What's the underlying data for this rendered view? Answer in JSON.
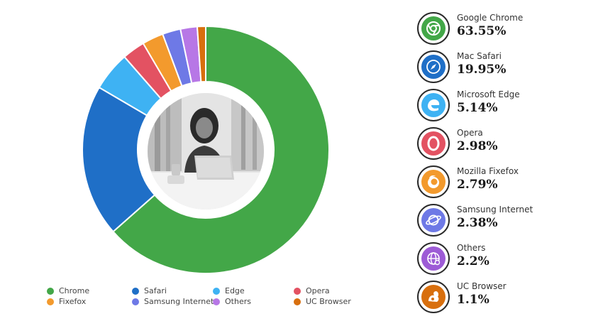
{
  "chart_data": {
    "type": "pie",
    "style": "donut",
    "categories": [
      "Chrome",
      "Safari",
      "Edge",
      "Opera",
      "Fixefox",
      "Samsung Internet",
      "Others",
      "UC Browser"
    ],
    "values": [
      63.55,
      19.95,
      5.14,
      2.98,
      2.79,
      2.38,
      2.2,
      1.1
    ],
    "colors": [
      "#43a748",
      "#1f6fc7",
      "#3eb2f3",
      "#e35262",
      "#f39a2d",
      "#6e79e6",
      "#b777e6",
      "#d86f0e"
    ],
    "legend_position": "bottom-left"
  },
  "legend": [
    {
      "label": "Chrome",
      "color": "#43a748"
    },
    {
      "label": "Safari",
      "color": "#1f6fc7"
    },
    {
      "label": "Edge",
      "color": "#3eb2f3"
    },
    {
      "label": "Opera",
      "color": "#e35262"
    },
    {
      "label": "Fixefox",
      "color": "#f39a2d"
    },
    {
      "label": "Samsung Internet",
      "color": "#6e79e6"
    },
    {
      "label": "Others",
      "color": "#b777e6"
    },
    {
      "label": "UC Browser",
      "color": "#d86f0e"
    }
  ],
  "stats": [
    {
      "name": "Google Chrome",
      "value": "63.55%",
      "icon": "chrome-icon",
      "color": "#43a748"
    },
    {
      "name": "Mac Safari",
      "value": "19.95%",
      "icon": "safari-icon",
      "color": "#1f6fc7"
    },
    {
      "name": "Microsoft Edge",
      "value": "5.14%",
      "icon": "edge-icon",
      "color": "#3eb2f3"
    },
    {
      "name": "Opera",
      "value": "2.98%",
      "icon": "opera-icon",
      "color": "#e35262"
    },
    {
      "name": "Mozilla Fixefox",
      "value": "2.79%",
      "icon": "firefox-icon",
      "color": "#f39a2d"
    },
    {
      "name": "Samsung Internet",
      "value": "2.38%",
      "icon": "samsung-internet-icon",
      "color": "#6e79e6"
    },
    {
      "name": "Others",
      "value": "2.2%",
      "icon": "globe-icon",
      "color": "#9d5bd6"
    },
    {
      "name": "UC Browser",
      "value": "1.1%",
      "icon": "uc-browser-icon",
      "color": "#d86f0e"
    }
  ]
}
